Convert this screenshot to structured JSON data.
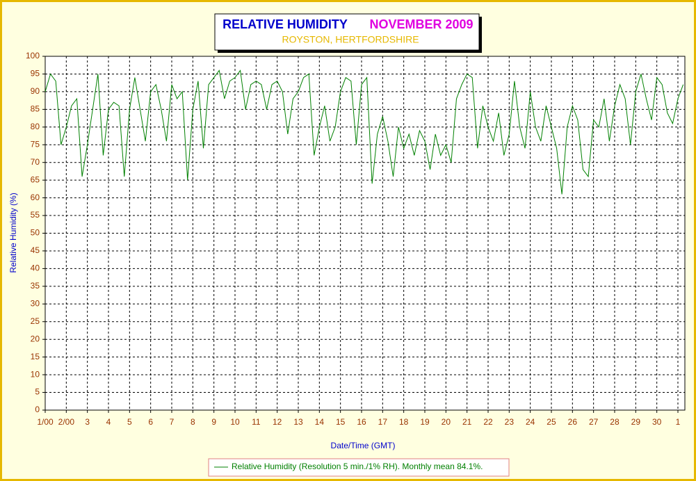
{
  "chart_data": {
    "type": "line",
    "title": "RELATIVE HUMIDITY",
    "title_date": "NOVEMBER 2009",
    "subtitle": "ROYSTON, HERTFORDSHIRE",
    "x_label": "Date/Time (GMT)",
    "y_label": "Relative Humidity (%)",
    "x": [
      0,
      0.25,
      0.5,
      0.75,
      1,
      1.25,
      1.5,
      1.75,
      2,
      2.25,
      2.5,
      2.75,
      3,
      3.25,
      3.5,
      3.75,
      4,
      4.25,
      4.5,
      4.75,
      5,
      5.25,
      5.5,
      5.75,
      6,
      6.25,
      6.5,
      6.75,
      7,
      7.25,
      7.5,
      7.75,
      8,
      8.25,
      8.5,
      8.75,
      9,
      9.25,
      9.5,
      9.75,
      10,
      10.25,
      10.5,
      10.75,
      11,
      11.25,
      11.5,
      11.75,
      12,
      12.25,
      12.5,
      12.75,
      13,
      13.25,
      13.5,
      13.75,
      14,
      14.25,
      14.5,
      14.75,
      15,
      15.25,
      15.5,
      15.75,
      16,
      16.25,
      16.5,
      16.75,
      17,
      17.25,
      17.5,
      17.75,
      18,
      18.25,
      18.5,
      18.75,
      19,
      19.25,
      19.5,
      19.75,
      20,
      20.25,
      20.5,
      20.75,
      21,
      21.25,
      21.5,
      21.75,
      22,
      22.25,
      22.5,
      22.75,
      23,
      23.25,
      23.5,
      23.75,
      24,
      24.25,
      24.5,
      24.75,
      25,
      25.25,
      25.5,
      25.75,
      26,
      26.25,
      26.5,
      26.75,
      27,
      27.25,
      27.5,
      27.75,
      28,
      28.25,
      28.5,
      28.75,
      29,
      29.25,
      29.5,
      29.75,
      30,
      30.25
    ],
    "series": [
      {
        "name": "Relative Humidity (Resolution 5 min./1% RH). Monthly mean 84.1%.",
        "color": "#008000",
        "values": [
          90,
          95,
          93,
          75,
          80,
          86,
          88,
          66,
          75,
          85,
          95,
          72,
          85,
          87,
          86,
          66,
          85,
          94,
          85,
          76,
          90,
          92,
          85,
          76,
          92,
          88,
          90,
          65,
          85,
          93,
          74,
          92,
          94,
          96,
          88,
          93,
          94,
          96,
          85,
          92,
          93,
          92,
          85,
          92,
          93,
          90,
          78,
          88,
          90,
          94,
          95,
          72,
          80,
          86,
          76,
          80,
          90,
          94,
          93,
          75,
          92,
          94,
          64,
          78,
          83,
          76,
          66,
          80,
          74,
          78,
          72,
          79,
          76,
          68,
          78,
          72,
          75,
          70,
          88,
          92,
          95,
          94,
          74,
          86,
          80,
          76,
          84,
          72,
          78,
          93,
          80,
          74,
          90,
          80,
          76,
          86,
          80,
          74,
          61,
          80,
          86,
          82,
          68,
          66,
          82,
          80,
          88,
          76,
          86,
          92,
          88,
          75,
          90,
          95,
          88,
          82,
          94,
          92,
          84,
          81,
          88,
          92
        ]
      }
    ],
    "xlim": [
      0,
      30.33
    ],
    "xticks": [
      {
        "value": 0,
        "label": "1/00"
      },
      {
        "value": 1,
        "label": "2/00"
      },
      {
        "value": 2,
        "label": "3"
      },
      {
        "value": 3,
        "label": "4"
      },
      {
        "value": 4,
        "label": "5"
      },
      {
        "value": 5,
        "label": "6"
      },
      {
        "value": 6,
        "label": "7"
      },
      {
        "value": 7,
        "label": "8"
      },
      {
        "value": 8,
        "label": "9"
      },
      {
        "value": 9,
        "label": "10"
      },
      {
        "value": 10,
        "label": "11"
      },
      {
        "value": 11,
        "label": "12"
      },
      {
        "value": 12,
        "label": "13"
      },
      {
        "value": 13,
        "label": "14"
      },
      {
        "value": 14,
        "label": "15"
      },
      {
        "value": 15,
        "label": "16"
      },
      {
        "value": 16,
        "label": "17"
      },
      {
        "value": 17,
        "label": "18"
      },
      {
        "value": 18,
        "label": "19"
      },
      {
        "value": 19,
        "label": "20"
      },
      {
        "value": 20,
        "label": "21"
      },
      {
        "value": 21,
        "label": "22"
      },
      {
        "value": 22,
        "label": "23"
      },
      {
        "value": 23,
        "label": "24"
      },
      {
        "value": 24,
        "label": "25"
      },
      {
        "value": 25,
        "label": "26"
      },
      {
        "value": 26,
        "label": "27"
      },
      {
        "value": 27,
        "label": "28"
      },
      {
        "value": 28,
        "label": "29"
      },
      {
        "value": 29,
        "label": "30"
      },
      {
        "value": 30,
        "label": "1"
      }
    ],
    "ylim": [
      0,
      100
    ],
    "yticks": [
      0,
      5,
      10,
      15,
      20,
      25,
      30,
      35,
      40,
      45,
      50,
      55,
      60,
      65,
      70,
      75,
      80,
      85,
      90,
      95,
      100
    ],
    "grid": true
  }
}
